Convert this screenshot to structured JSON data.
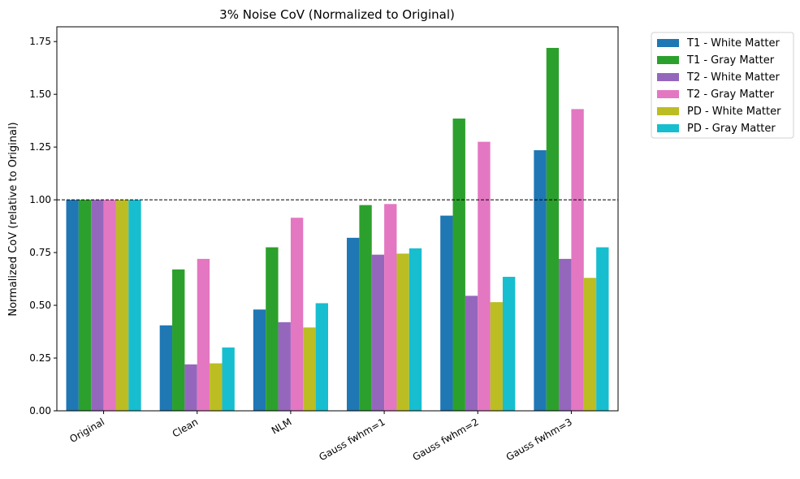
{
  "chart_data": {
    "type": "bar",
    "title": "3% Noise CoV (Normalized to Original)",
    "xlabel": "",
    "ylabel": "Normalized CoV (relative to Original)",
    "ylim": [
      0,
      1.82
    ],
    "yticks": [
      "0.00",
      "0.25",
      "0.50",
      "0.75",
      "1.00",
      "1.25",
      "1.50",
      "1.75"
    ],
    "categories": [
      "Original",
      "Clean",
      "NLM",
      "Gauss fwhm=1",
      "Gauss fwhm=2",
      "Gauss fwhm=3"
    ],
    "reference_line": 1.0,
    "grid": false,
    "legend_position": "outside-top-right",
    "series": [
      {
        "name": "T1 - White Matter",
        "color": "#1f77b4",
        "values": [
          1.0,
          0.405,
          0.48,
          0.82,
          0.925,
          1.235
        ]
      },
      {
        "name": "T1 - Gray Matter",
        "color": "#2ca02c",
        "values": [
          1.0,
          0.67,
          0.775,
          0.975,
          1.385,
          1.72
        ]
      },
      {
        "name": "T2 - White Matter",
        "color": "#9467bd",
        "values": [
          1.0,
          0.22,
          0.42,
          0.74,
          0.545,
          0.72
        ]
      },
      {
        "name": "T2 - Gray Matter",
        "color": "#e377c2",
        "values": [
          1.0,
          0.72,
          0.915,
          0.98,
          1.275,
          1.43
        ]
      },
      {
        "name": "PD - White Matter",
        "color": "#bcbd22",
        "values": [
          1.0,
          0.225,
          0.395,
          0.745,
          0.515,
          0.63
        ]
      },
      {
        "name": "PD - Gray Matter",
        "color": "#17becf",
        "values": [
          1.0,
          0.3,
          0.51,
          0.77,
          0.635,
          0.775
        ]
      }
    ]
  }
}
